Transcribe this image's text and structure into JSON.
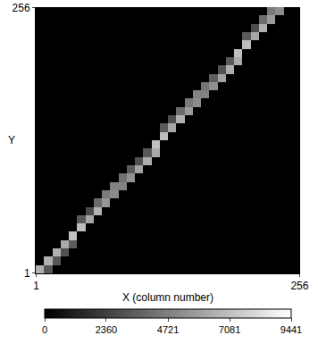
{
  "chart_data": {
    "type": "heatmap",
    "xlabel": "X (column number)",
    "ylabel": "Y",
    "xlim": [
      0.5,
      256.5
    ],
    "ylim": [
      0.5,
      256.5
    ],
    "xticks": [
      1,
      256
    ],
    "yticks": [
      1,
      256
    ],
    "x": [
      4.5,
      12.5,
      20.5,
      28.5,
      36.5,
      44.5,
      52.5,
      60.5,
      68.5,
      76.5,
      84.5,
      92.5,
      100.5,
      108.5,
      116.5,
      124.5,
      132.5,
      140.5,
      148.5,
      156.5,
      164.5,
      172.5,
      180.5,
      188.5,
      196.5,
      204.5,
      212.5,
      220.5,
      228.5,
      236.5,
      244.5,
      252.5
    ],
    "y": [
      4.5,
      12.5,
      20.5,
      28.5,
      36.5,
      44.5,
      52.5,
      60.5,
      68.5,
      76.5,
      84.5,
      92.5,
      100.5,
      108.5,
      116.5,
      124.5,
      132.5,
      140.5,
      148.5,
      156.5,
      164.5,
      172.5,
      180.5,
      188.5,
      196.5,
      204.5,
      212.5,
      220.5,
      228.5,
      236.5,
      244.5,
      252.5
    ],
    "cells": [
      [
        6500,
        3200,
        0,
        0,
        0,
        0,
        0,
        0,
        0,
        0,
        0,
        0,
        0,
        0,
        0,
        0,
        0,
        0,
        0,
        0,
        0,
        0,
        0,
        0,
        0,
        0,
        0,
        0,
        0,
        0,
        0,
        0
      ],
      [
        0,
        6500,
        3200,
        0,
        0,
        0,
        0,
        0,
        0,
        0,
        0,
        0,
        0,
        0,
        0,
        0,
        0,
        0,
        0,
        0,
        0,
        0,
        0,
        0,
        0,
        0,
        0,
        0,
        0,
        0,
        0,
        0
      ],
      [
        0,
        0,
        6500,
        3000,
        0,
        0,
        0,
        0,
        0,
        0,
        0,
        0,
        0,
        0,
        0,
        0,
        0,
        0,
        0,
        0,
        0,
        0,
        0,
        0,
        0,
        0,
        0,
        0,
        0,
        0,
        0,
        0
      ],
      [
        0,
        0,
        0,
        6300,
        3400,
        0,
        0,
        0,
        0,
        0,
        0,
        0,
        0,
        0,
        0,
        0,
        0,
        0,
        0,
        0,
        0,
        0,
        0,
        0,
        0,
        0,
        0,
        0,
        0,
        0,
        0,
        0
      ],
      [
        0,
        0,
        0,
        0,
        7200,
        0,
        0,
        0,
        0,
        0,
        0,
        0,
        0,
        0,
        0,
        0,
        0,
        0,
        0,
        0,
        0,
        0,
        0,
        0,
        0,
        0,
        0,
        0,
        0,
        0,
        0,
        0
      ],
      [
        0,
        0,
        0,
        0,
        0,
        7000,
        0,
        0,
        0,
        0,
        0,
        0,
        0,
        0,
        0,
        0,
        0,
        0,
        0,
        0,
        0,
        0,
        0,
        0,
        0,
        0,
        0,
        0,
        0,
        0,
        0,
        0
      ],
      [
        0,
        0,
        0,
        0,
        0,
        3300,
        6200,
        0,
        0,
        0,
        0,
        0,
        0,
        0,
        0,
        0,
        0,
        0,
        0,
        0,
        0,
        0,
        0,
        0,
        0,
        0,
        0,
        0,
        0,
        0,
        0,
        0
      ],
      [
        0,
        0,
        0,
        0,
        0,
        0,
        2800,
        6600,
        0,
        0,
        0,
        0,
        0,
        0,
        0,
        0,
        0,
        0,
        0,
        0,
        0,
        0,
        0,
        0,
        0,
        0,
        0,
        0,
        0,
        0,
        0,
        0
      ],
      [
        0,
        0,
        0,
        0,
        0,
        0,
        0,
        4000,
        5600,
        0,
        0,
        0,
        0,
        0,
        0,
        0,
        0,
        0,
        0,
        0,
        0,
        0,
        0,
        0,
        0,
        0,
        0,
        0,
        0,
        0,
        0,
        0
      ],
      [
        0,
        0,
        0,
        0,
        0,
        0,
        0,
        0,
        4500,
        5200,
        0,
        0,
        0,
        0,
        0,
        0,
        0,
        0,
        0,
        0,
        0,
        0,
        0,
        0,
        0,
        0,
        0,
        0,
        0,
        0,
        0,
        0
      ],
      [
        0,
        0,
        0,
        0,
        0,
        0,
        0,
        0,
        0,
        4800,
        4800,
        0,
        0,
        0,
        0,
        0,
        0,
        0,
        0,
        0,
        0,
        0,
        0,
        0,
        0,
        0,
        0,
        0,
        0,
        0,
        0,
        0
      ],
      [
        0,
        0,
        0,
        0,
        0,
        0,
        0,
        0,
        0,
        0,
        4200,
        5400,
        0,
        0,
        0,
        0,
        0,
        0,
        0,
        0,
        0,
        0,
        0,
        0,
        0,
        0,
        0,
        0,
        0,
        0,
        0,
        0
      ],
      [
        0,
        0,
        0,
        0,
        0,
        0,
        0,
        0,
        0,
        0,
        0,
        3400,
        6000,
        0,
        0,
        0,
        0,
        0,
        0,
        0,
        0,
        0,
        0,
        0,
        0,
        0,
        0,
        0,
        0,
        0,
        0,
        0
      ],
      [
        0,
        0,
        0,
        0,
        0,
        0,
        0,
        0,
        0,
        0,
        0,
        0,
        3000,
        6400,
        0,
        0,
        0,
        0,
        0,
        0,
        0,
        0,
        0,
        0,
        0,
        0,
        0,
        0,
        0,
        0,
        0,
        0
      ],
      [
        0,
        0,
        0,
        0,
        0,
        0,
        0,
        0,
        0,
        0,
        0,
        0,
        0,
        3300,
        6300,
        0,
        0,
        0,
        0,
        0,
        0,
        0,
        0,
        0,
        0,
        0,
        0,
        0,
        0,
        0,
        0,
        0
      ],
      [
        0,
        0,
        0,
        0,
        0,
        0,
        0,
        0,
        0,
        0,
        0,
        0,
        0,
        0,
        7100,
        0,
        0,
        0,
        0,
        0,
        0,
        0,
        0,
        0,
        0,
        0,
        0,
        0,
        0,
        0,
        0,
        0
      ],
      [
        0,
        0,
        0,
        0,
        0,
        0,
        0,
        0,
        0,
        0,
        0,
        0,
        0,
        0,
        0,
        7000,
        0,
        0,
        0,
        0,
        0,
        0,
        0,
        0,
        0,
        0,
        0,
        0,
        0,
        0,
        0,
        0
      ],
      [
        0,
        0,
        0,
        0,
        0,
        0,
        0,
        0,
        0,
        0,
        0,
        0,
        0,
        0,
        0,
        3300,
        6200,
        0,
        0,
        0,
        0,
        0,
        0,
        0,
        0,
        0,
        0,
        0,
        0,
        0,
        0,
        0
      ],
      [
        0,
        0,
        0,
        0,
        0,
        0,
        0,
        0,
        0,
        0,
        0,
        0,
        0,
        0,
        0,
        0,
        2900,
        6500,
        0,
        0,
        0,
        0,
        0,
        0,
        0,
        0,
        0,
        0,
        0,
        0,
        0,
        0
      ],
      [
        0,
        0,
        0,
        0,
        0,
        0,
        0,
        0,
        0,
        0,
        0,
        0,
        0,
        0,
        0,
        0,
        0,
        4000,
        5700,
        0,
        0,
        0,
        0,
        0,
        0,
        0,
        0,
        0,
        0,
        0,
        0,
        0
      ],
      [
        0,
        0,
        0,
        0,
        0,
        0,
        0,
        0,
        0,
        0,
        0,
        0,
        0,
        0,
        0,
        0,
        0,
        0,
        4500,
        5200,
        0,
        0,
        0,
        0,
        0,
        0,
        0,
        0,
        0,
        0,
        0,
        0
      ],
      [
        0,
        0,
        0,
        0,
        0,
        0,
        0,
        0,
        0,
        0,
        0,
        0,
        0,
        0,
        0,
        0,
        0,
        0,
        0,
        4800,
        4800,
        0,
        0,
        0,
        0,
        0,
        0,
        0,
        0,
        0,
        0,
        0
      ],
      [
        0,
        0,
        0,
        0,
        0,
        0,
        0,
        0,
        0,
        0,
        0,
        0,
        0,
        0,
        0,
        0,
        0,
        0,
        0,
        0,
        4300,
        5300,
        0,
        0,
        0,
        0,
        0,
        0,
        0,
        0,
        0,
        0
      ],
      [
        0,
        0,
        0,
        0,
        0,
        0,
        0,
        0,
        0,
        0,
        0,
        0,
        0,
        0,
        0,
        0,
        0,
        0,
        0,
        0,
        0,
        3500,
        6000,
        0,
        0,
        0,
        0,
        0,
        0,
        0,
        0,
        0
      ],
      [
        0,
        0,
        0,
        0,
        0,
        0,
        0,
        0,
        0,
        0,
        0,
        0,
        0,
        0,
        0,
        0,
        0,
        0,
        0,
        0,
        0,
        0,
        3000,
        6400,
        0,
        0,
        0,
        0,
        0,
        0,
        0,
        0
      ],
      [
        0,
        0,
        0,
        0,
        0,
        0,
        0,
        0,
        0,
        0,
        0,
        0,
        0,
        0,
        0,
        0,
        0,
        0,
        0,
        0,
        0,
        0,
        0,
        3300,
        6300,
        0,
        0,
        0,
        0,
        0,
        0,
        0
      ],
      [
        0,
        0,
        0,
        0,
        0,
        0,
        0,
        0,
        0,
        0,
        0,
        0,
        0,
        0,
        0,
        0,
        0,
        0,
        0,
        0,
        0,
        0,
        0,
        0,
        7100,
        0,
        0,
        0,
        0,
        0,
        0,
        0
      ],
      [
        0,
        0,
        0,
        0,
        0,
        0,
        0,
        0,
        0,
        0,
        0,
        0,
        0,
        0,
        0,
        0,
        0,
        0,
        0,
        0,
        0,
        0,
        0,
        0,
        0,
        7000,
        0,
        0,
        0,
        0,
        0,
        0
      ],
      [
        0,
        0,
        0,
        0,
        0,
        0,
        0,
        0,
        0,
        0,
        0,
        0,
        0,
        0,
        0,
        0,
        0,
        0,
        0,
        0,
        0,
        0,
        0,
        0,
        0,
        3300,
        6200,
        0,
        0,
        0,
        0,
        0
      ],
      [
        0,
        0,
        0,
        0,
        0,
        0,
        0,
        0,
        0,
        0,
        0,
        0,
        0,
        0,
        0,
        0,
        0,
        0,
        0,
        0,
        0,
        0,
        0,
        0,
        0,
        0,
        2900,
        6500,
        0,
        0,
        0,
        0
      ],
      [
        0,
        0,
        0,
        0,
        0,
        0,
        0,
        0,
        0,
        0,
        0,
        0,
        0,
        0,
        0,
        0,
        0,
        0,
        0,
        0,
        0,
        0,
        0,
        0,
        0,
        0,
        0,
        4000,
        5700,
        0,
        0,
        0
      ],
      [
        0,
        0,
        0,
        0,
        0,
        0,
        0,
        0,
        0,
        0,
        0,
        0,
        0,
        0,
        0,
        0,
        0,
        0,
        0,
        0,
        0,
        0,
        0,
        0,
        0,
        0,
        0,
        0,
        4500,
        5200,
        0,
        0
      ]
    ],
    "colorbar": {
      "range": [
        0,
        9441
      ],
      "ticks": [
        0,
        2360,
        4721,
        7081,
        9441
      ]
    }
  }
}
